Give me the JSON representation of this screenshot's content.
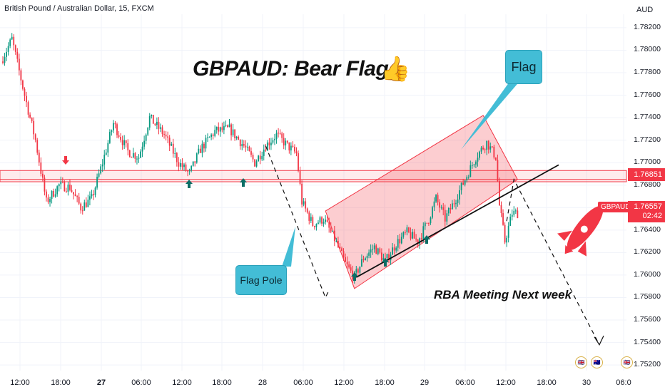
{
  "header": {
    "symbol_description": "British Pound / Australian Dollar, 15, FXCM",
    "currency": "AUD"
  },
  "annotations": {
    "title": "GBPAUD: Bear Flag",
    "thumb_icon": "thumbs-up-icon",
    "flag_callout": "Flag",
    "pole_callout": "Flag Pole",
    "note": "RBA Meeting Next week",
    "rocket_icon": "rocket-icon",
    "event_icons": [
      "uk-flag-icon",
      "australia-flag-icon",
      "uk-flag-icon"
    ]
  },
  "price_labels": {
    "level": "1.76851",
    "symbol": "GBPAUD",
    "current_price": "1.76557",
    "countdown": "02:42"
  },
  "colors": {
    "up": "#089981",
    "down": "#f23645",
    "flag_fill": "rgba(242,54,69,0.25)",
    "callout": "#43bdd6",
    "arrows_up": "#0b6e66",
    "rocket": "#f23645"
  },
  "chart_data": {
    "type": "candlestick",
    "title": "GBPAUD: Bear Flag",
    "instrument": "British Pound / Australian Dollar",
    "timeframe": "15",
    "source": "FXCM",
    "ylabel": "AUD",
    "ylim": [
      1.7515,
      1.7832
    ],
    "y_ticks": [
      "1.78200",
      "1.78000",
      "1.77800",
      "1.77600",
      "1.77400",
      "1.77200",
      "1.77000",
      "1.76800",
      "1.76600",
      "1.76400",
      "1.76200",
      "1.76000",
      "1.75800",
      "1.75600",
      "1.75400",
      "1.75200"
    ],
    "x_ticks": [
      {
        "label": "12:00",
        "bold": false
      },
      {
        "label": "18:00",
        "bold": false
      },
      {
        "label": "27",
        "bold": true
      },
      {
        "label": "06:00",
        "bold": false
      },
      {
        "label": "12:00",
        "bold": false
      },
      {
        "label": "18:00",
        "bold": false
      },
      {
        "label": "28",
        "bold": false
      },
      {
        "label": "06:00",
        "bold": false
      },
      {
        "label": "12:00",
        "bold": false
      },
      {
        "label": "18:00",
        "bold": false
      },
      {
        "label": "29",
        "bold": false
      },
      {
        "label": "06:00",
        "bold": false
      },
      {
        "label": "12:00",
        "bold": false
      },
      {
        "label": "18:00",
        "bold": false
      },
      {
        "label": "30",
        "bold": false
      },
      {
        "label": "06:0",
        "bold": false
      }
    ],
    "key_points": [
      {
        "t": 0,
        "p": 1.779
      },
      {
        "t": 6,
        "p": 1.781
      },
      {
        "t": 13,
        "p": 1.776
      },
      {
        "t": 19,
        "p": 1.772
      },
      {
        "t": 25,
        "p": 1.7665
      },
      {
        "t": 32,
        "p": 1.768
      },
      {
        "t": 38,
        "p": 1.7678
      },
      {
        "t": 44,
        "p": 1.766
      },
      {
        "t": 50,
        "p": 1.7668
      },
      {
        "t": 56,
        "p": 1.77
      },
      {
        "t": 62,
        "p": 1.7735
      },
      {
        "t": 70,
        "p": 1.771
      },
      {
        "t": 76,
        "p": 1.7705
      },
      {
        "t": 82,
        "p": 1.774
      },
      {
        "t": 90,
        "p": 1.7725
      },
      {
        "t": 98,
        "p": 1.77
      },
      {
        "t": 104,
        "p": 1.769
      },
      {
        "t": 110,
        "p": 1.7712
      },
      {
        "t": 118,
        "p": 1.7728
      },
      {
        "t": 126,
        "p": 1.773
      },
      {
        "t": 134,
        "p": 1.7715
      },
      {
        "t": 140,
        "p": 1.77
      },
      {
        "t": 146,
        "p": 1.7715
      },
      {
        "t": 152,
        "p": 1.7725
      },
      {
        "t": 158,
        "p": 1.7715
      },
      {
        "t": 163,
        "p": 1.7708
      },
      {
        "t": 166,
        "p": 1.7665
      },
      {
        "t": 172,
        "p": 1.7645
      },
      {
        "t": 178,
        "p": 1.765
      },
      {
        "t": 184,
        "p": 1.7632
      },
      {
        "t": 190,
        "p": 1.761
      },
      {
        "t": 195,
        "p": 1.7598
      },
      {
        "t": 200,
        "p": 1.7615
      },
      {
        "t": 206,
        "p": 1.7625
      },
      {
        "t": 212,
        "p": 1.7612
      },
      {
        "t": 218,
        "p": 1.7628
      },
      {
        "t": 224,
        "p": 1.7638
      },
      {
        "t": 230,
        "p": 1.763
      },
      {
        "t": 236,
        "p": 1.765
      },
      {
        "t": 240,
        "p": 1.7668
      },
      {
        "t": 245,
        "p": 1.765
      },
      {
        "t": 250,
        "p": 1.7665
      },
      {
        "t": 256,
        "p": 1.7685
      },
      {
        "t": 262,
        "p": 1.7705
      },
      {
        "t": 268,
        "p": 1.7718
      },
      {
        "t": 273,
        "p": 1.7705
      },
      {
        "t": 275,
        "p": 1.7662
      },
      {
        "t": 278,
        "p": 1.763
      },
      {
        "t": 282,
        "p": 1.7655
      },
      {
        "t": 284,
        "p": 1.7655
      }
    ],
    "candle_count": 285,
    "resistance_zone": {
      "upper": 1.7693,
      "lower": 1.7683,
      "level": 1.76851
    },
    "current_price": 1.76557,
    "flag_channel": {
      "support_line": [
        {
          "t": 195,
          "p": 1.7598
        },
        {
          "t": 300,
          "p": 1.769
        }
      ],
      "upper_line": [
        {
          "t": 180,
          "p": 1.7655
        },
        {
          "t": 262,
          "p": 1.774
        }
      ]
    },
    "projections": {
      "pole_move": [
        {
          "t": 145,
          "p": 1.7715
        },
        {
          "t": 178,
          "p": 1.758
        }
      ],
      "target_move": [
        {
          "t": 282,
          "p": 1.7685
        },
        {
          "t": 326,
          "p": 1.7538
        }
      ]
    }
  }
}
